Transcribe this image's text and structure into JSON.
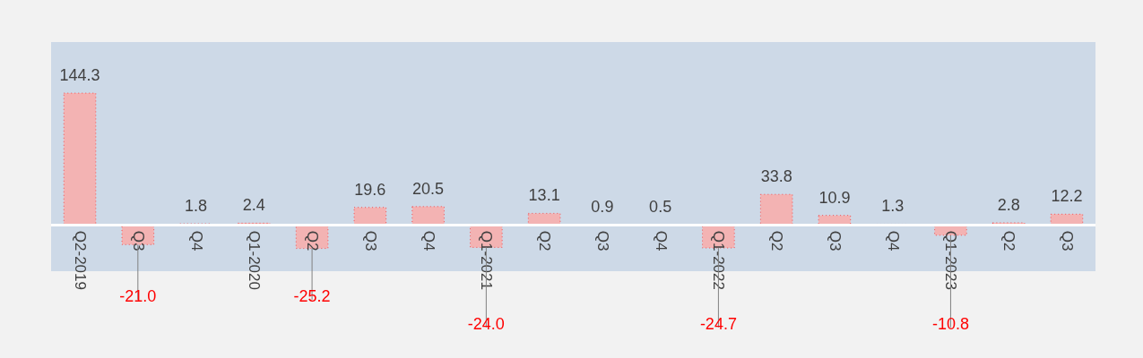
{
  "chart_data": {
    "type": "bar",
    "categories": [
      "Q2-2019",
      "Q3",
      "Q4",
      "Q1-2020",
      "Q2",
      "Q3",
      "Q4",
      "Q1-2021",
      "Q2",
      "Q3",
      "Q4",
      "Q1-2022",
      "Q2",
      "Q3",
      "Q4",
      "Q1-2023",
      "Q2",
      "Q3"
    ],
    "values": [
      144.3,
      -21.0,
      1.8,
      2.4,
      -25.2,
      19.6,
      20.5,
      -24.0,
      13.1,
      0.9,
      0.5,
      -24.7,
      33.8,
      10.9,
      1.3,
      -10.8,
      2.8,
      12.2
    ],
    "value_labels": [
      "144.3",
      "-21.0",
      "1.8",
      "2.4",
      "-25.2",
      "19.6",
      "20.5",
      "-24.0",
      "13.1",
      "0.9",
      "0.5",
      "-24.7",
      "33.8",
      "10.9",
      "1.3",
      "-10.8",
      "2.8",
      "12.2"
    ],
    "color": "#f3b3b3",
    "ylim": [
      -50,
      200
    ],
    "tick_labels": "x",
    "grid": false
  }
}
